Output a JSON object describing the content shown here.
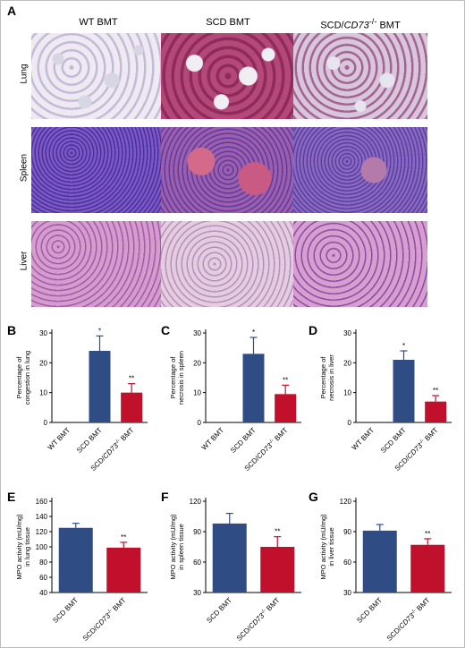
{
  "panel_letters": {
    "A": "A",
    "B": "B",
    "C": "C",
    "D": "D",
    "E": "E",
    "F": "F",
    "G": "G"
  },
  "histology": {
    "columns": [
      "WT BMT",
      "SCD BMT",
      "SCD/CD73-/- BMT"
    ],
    "rows": [
      "Lung",
      "Spleen",
      "Liver"
    ]
  },
  "colors": {
    "scd": "#2f4c85",
    "cd73": "#c0102c"
  },
  "chart_data": [
    {
      "panel": "B",
      "type": "bar",
      "categories": [
        "WT BMT",
        "SCD BMT",
        "SCD/CD73-/- BMT"
      ],
      "values": [
        0,
        24,
        10
      ],
      "errors": [
        0,
        5,
        3
      ],
      "sig": [
        "",
        "*",
        "**"
      ],
      "ylabel": [
        "Percentage of",
        "congestion in lung"
      ],
      "ylim": [
        0,
        30
      ],
      "yticks": [
        "0",
        "10",
        "20",
        "30"
      ],
      "ytick_values": [
        0,
        10,
        20,
        30
      ]
    },
    {
      "panel": "C",
      "type": "bar",
      "categories": [
        "WT BMT",
        "SCD BMT",
        "SCD/CD73-/- BMT"
      ],
      "values": [
        0,
        23,
        9.5
      ],
      "errors": [
        0,
        5.5,
        3
      ],
      "sig": [
        "",
        "*",
        "**"
      ],
      "ylabel": [
        "Percentage of",
        "necrosis in spleen"
      ],
      "ylim": [
        0,
        30
      ],
      "yticks": [
        "0",
        "10",
        "20",
        "30"
      ],
      "ytick_values": [
        0,
        10,
        20,
        30
      ]
    },
    {
      "panel": "D",
      "type": "bar",
      "categories": [
        "WT BMT",
        "SCD BMT",
        "SCD/CD73-/- BMT"
      ],
      "values": [
        0,
        21,
        7
      ],
      "errors": [
        0,
        3,
        2
      ],
      "sig": [
        "",
        "*",
        "**"
      ],
      "ylabel": [
        "Percentage of",
        "necrosis in liver"
      ],
      "ylim": [
        0,
        30
      ],
      "yticks": [
        "0",
        "10",
        "20",
        "30"
      ],
      "ytick_values": [
        0,
        10,
        20,
        30
      ]
    },
    {
      "panel": "E",
      "type": "bar",
      "categories": [
        "SCD BMT",
        "SCD/CD73-/- BMT"
      ],
      "values": [
        125,
        99
      ],
      "errors": [
        6,
        7
      ],
      "sig": [
        "",
        "**"
      ],
      "ylabel": [
        "MPO activity (mU/mg)",
        "in lung tissue"
      ],
      "ylim": [
        40,
        160
      ],
      "yticks": [
        "40",
        "60",
        "80",
        "100",
        "120",
        "140",
        "160"
      ],
      "ytick_values": [
        40,
        60,
        80,
        100,
        120,
        140,
        160
      ]
    },
    {
      "panel": "F",
      "type": "bar",
      "categories": [
        "SCD BMT",
        "SCD/CD73-/- BMT"
      ],
      "values": [
        98,
        75
      ],
      "errors": [
        10,
        10
      ],
      "sig": [
        "",
        "**"
      ],
      "ylabel": [
        "MPO activity (mU/mg)",
        "in spleen tissue"
      ],
      "ylim": [
        30,
        120
      ],
      "yticks": [
        "30",
        "60",
        "90",
        "120"
      ],
      "ytick_values": [
        30,
        60,
        90,
        120
      ]
    },
    {
      "panel": "G",
      "type": "bar",
      "categories": [
        "SCD BMT",
        "SCD/CD73-/- BMT"
      ],
      "values": [
        91,
        77
      ],
      "errors": [
        6,
        6
      ],
      "sig": [
        "",
        "**"
      ],
      "ylabel": [
        "MPO activity (mU/mg)",
        "in liver tissue"
      ],
      "ylim": [
        30,
        120
      ],
      "yticks": [
        "30",
        "60",
        "90",
        "120"
      ],
      "ytick_values": [
        30,
        60,
        90,
        120
      ]
    }
  ]
}
